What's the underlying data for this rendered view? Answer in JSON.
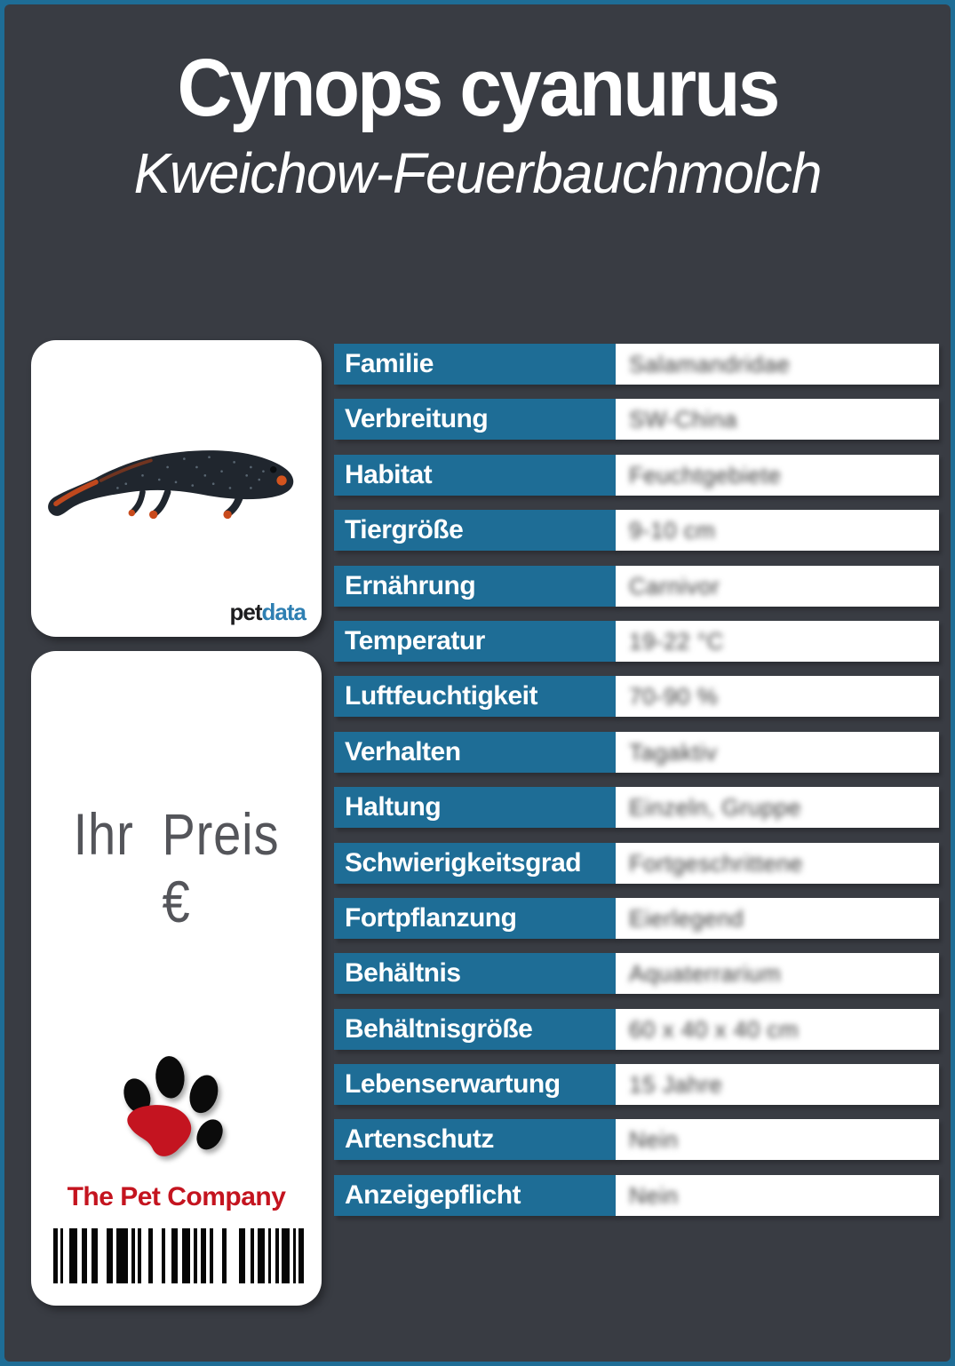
{
  "header": {
    "title": "Cynops cyanurus",
    "subtitle": "Kweichow-Feuerbauchmolch"
  },
  "image_card": {
    "photo_icon": "newt-photo",
    "logo": {
      "part1": "pet",
      "part2": "data"
    }
  },
  "price_card": {
    "price_label": "Ihr Preis €",
    "paw_icon": "paw-print-logo",
    "brand_name": "The Pet Company",
    "barcode_icon": "barcode"
  },
  "colors": {
    "accent_blue": "#1E6D96",
    "background_dark": "#393C43",
    "brand_red": "#C4141F",
    "petdata_blue": "#2E7FB2",
    "newt_orange": "#C84A1C"
  },
  "table": {
    "rows": [
      {
        "label": "Familie",
        "value": "Salamandridae"
      },
      {
        "label": "Verbreitung",
        "value": "SW-China"
      },
      {
        "label": "Habitat",
        "value": "Feuchtgebiete"
      },
      {
        "label": "Tiergröße",
        "value": "9-10 cm"
      },
      {
        "label": "Ernährung",
        "value": "Carnivor"
      },
      {
        "label": "Temperatur",
        "value": "19-22 °C"
      },
      {
        "label": "Luftfeuchtigkeit",
        "value": "70-90 %"
      },
      {
        "label": "Verhalten",
        "value": "Tagaktiv"
      },
      {
        "label": "Haltung",
        "value": "Einzeln, Gruppe"
      },
      {
        "label": "Schwierigkeitsgrad",
        "value": "Fortgeschrittene"
      },
      {
        "label": "Fortpflanzung",
        "value": "Eierlegend"
      },
      {
        "label": "Behältnis",
        "value": "Aquaterrarium"
      },
      {
        "label": "Behältnisgröße",
        "value": "60 x 40 x 40 cm"
      },
      {
        "label": "Lebenserwartung",
        "value": "15 Jahre"
      },
      {
        "label": "Artenschutz",
        "value": "Nein"
      },
      {
        "label": "Anzeigepflicht",
        "value": "Nein"
      }
    ]
  },
  "barcode": {
    "bars": [
      [
        5,
        3
      ],
      [
        3,
        7
      ],
      [
        9,
        5
      ],
      [
        6,
        5
      ],
      [
        7,
        10
      ],
      [
        7,
        4
      ],
      [
        13,
        4
      ],
      [
        4,
        3
      ],
      [
        4,
        8
      ],
      [
        5,
        10
      ],
      [
        4,
        7
      ],
      [
        7,
        5
      ],
      [
        9,
        4
      ],
      [
        4,
        4
      ],
      [
        6,
        4
      ],
      [
        4,
        10
      ],
      [
        5,
        14
      ],
      [
        7,
        6
      ],
      [
        4,
        4
      ],
      [
        8,
        4
      ],
      [
        3,
        5
      ],
      [
        4,
        3
      ],
      [
        9,
        4
      ],
      [
        3,
        3
      ],
      [
        6,
        0
      ]
    ]
  }
}
